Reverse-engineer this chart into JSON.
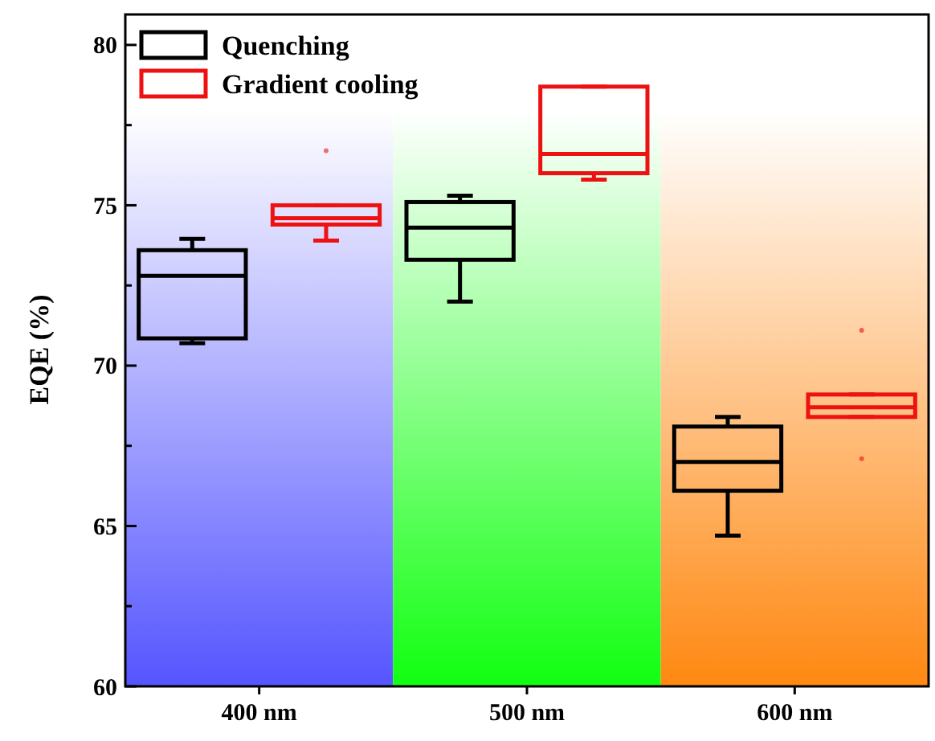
{
  "chart_data": {
    "type": "box",
    "ylabel": "EQE (%)",
    "categories": [
      "400 nm",
      "500 nm",
      "600 nm"
    ],
    "ylim": [
      60,
      81
    ],
    "yticks": [
      60,
      {
        "value": 62.5,
        "label": null
      },
      65,
      {
        "value": 67.5,
        "label": null
      },
      70,
      {
        "value": 72.5,
        "label": null
      },
      75,
      {
        "value": 77.5,
        "label": null
      },
      80
    ],
    "legend": "top left",
    "grid": false,
    "bands": [
      {
        "axis": "x",
        "from": "400 nm",
        "to": "400 nm",
        "color": "#5555ff"
      },
      {
        "axis": "x",
        "from": "500 nm",
        "to": "500 nm",
        "color": "#11ff11"
      },
      {
        "axis": "x",
        "from": "600 nm",
        "to": "600 nm",
        "color": "#ff8811"
      }
    ],
    "series": [
      {
        "name": "Quenching",
        "color": "#000000",
        "boxes": [
          {
            "low": 70.7,
            "q1": 70.85,
            "median": 72.8,
            "q3": 73.6,
            "high": 73.95
          },
          {
            "low": 72.0,
            "q1": 73.3,
            "median": 74.3,
            "q3": 75.1,
            "high": 75.3
          },
          {
            "low": 64.7,
            "q1": 66.1,
            "median": 67.0,
            "q3": 68.1,
            "high": 68.4
          }
        ]
      },
      {
        "name": "Gradient cooling",
        "color": "#ee1111",
        "boxes": [
          {
            "low": 73.9,
            "q1": 74.4,
            "median": 74.6,
            "q3": 75.0,
            "high": 75.0,
            "outliers": [
              76.7
            ]
          },
          {
            "low": 75.8,
            "q1": 76.0,
            "median": 76.6,
            "q3": 78.7,
            "high": 78.7
          },
          {
            "low": 68.4,
            "q1": 68.4,
            "median": 68.7,
            "q3": 69.1,
            "high": 69.1,
            "outliers": [
              71.1,
              67.1
            ]
          }
        ]
      }
    ]
  }
}
